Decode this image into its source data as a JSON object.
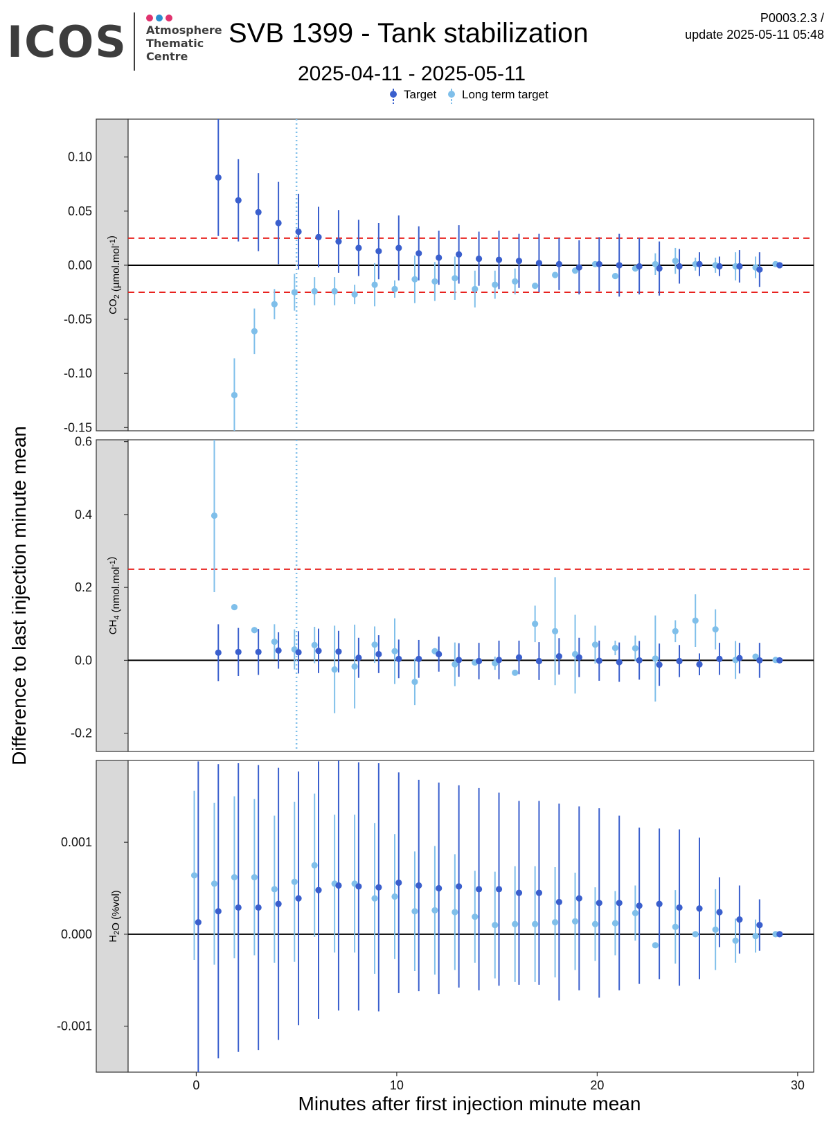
{
  "header": {
    "logo_text": "ICOS",
    "logo_sub": [
      "Atmosphere",
      "Thematic",
      "Centre"
    ],
    "logo_dot_colors": [
      "#e0336e",
      "#2b8fcf",
      "#e0336e"
    ],
    "title": "SVB 1399 - Tank stabilization",
    "date_range": "2025-04-11 - 2025-05-11",
    "meta_line1": "P0003.2.3 /",
    "meta_line2": "update  2025-05-11 05:48"
  },
  "chart_data": {
    "type": "scatter",
    "ylabel": "Difference to last injection minute mean",
    "xlabel": "Minutes after first injection minute mean",
    "xlim": [
      -3.4,
      30.8
    ],
    "xticks": [
      0,
      10,
      20,
      30
    ],
    "vline_x": 5,
    "legend": {
      "placement": "top",
      "entries": [
        {
          "name": "Target",
          "color": "#3a5fcd"
        },
        {
          "name": "Long term target",
          "color": "#7fbfea"
        }
      ]
    },
    "colors": {
      "target": "#3a5fcd",
      "long_term": "#7fbfea",
      "threshold": "#e8221e",
      "vline": "#7fbfea",
      "strip": "#d9d9d9"
    },
    "panels": [
      {
        "id": "co2",
        "strip_label": "CO",
        "strip_sub": "2",
        "strip_unit_pre": " (µmol.mol",
        "strip_sup": "-1",
        "strip_unit_post": ")",
        "ylim": [
          -0.153,
          0.135
        ],
        "yticks": [
          0.1,
          0.05,
          0.0,
          -0.05,
          -0.1,
          -0.15
        ],
        "ytick_labels": [
          "0.10",
          "0.05",
          "0.00",
          "-0.05",
          "-0.10",
          "-0.15"
        ],
        "thresholds": [
          0.025,
          -0.025
        ],
        "series": [
          {
            "name": "Long term target",
            "key": "long_term",
            "x": [
              1.9,
              2.9,
              3.9,
              4.9,
              5.9,
              6.9,
              7.9,
              8.9,
              9.9,
              10.9,
              11.9,
              12.9,
              13.9,
              14.9,
              15.9,
              16.9,
              17.9,
              18.9,
              19.9,
              20.9,
              21.9,
              22.9,
              23.9,
              24.9,
              25.9,
              26.9,
              27.9,
              28.9
            ],
            "y": [
              -0.12,
              -0.061,
              -0.036,
              -0.025,
              -0.024,
              -0.024,
              -0.027,
              -0.018,
              -0.022,
              -0.013,
              -0.015,
              -0.012,
              -0.022,
              -0.018,
              -0.015,
              -0.019,
              -0.009,
              -0.005,
              0.001,
              -0.01,
              -0.003,
              0.001,
              0.004,
              0.001,
              0.0,
              -0.001,
              -0.002,
              0.001
            ],
            "err": [
              0.034,
              0.021,
              0.014,
              0.017,
              0.013,
              0.013,
              0.009,
              0.02,
              0.008,
              0.022,
              0.018,
              0.02,
              0.017,
              0.013,
              0.012,
              0.0,
              0.0,
              0.0,
              0.0,
              0.0,
              0.0,
              0.01,
              0.012,
              0.006,
              0.007,
              0.013,
              0.01,
              0.0
            ]
          },
          {
            "name": "Target",
            "key": "target",
            "x": [
              1.1,
              2.1,
              3.1,
              4.1,
              5.1,
              6.1,
              7.1,
              8.1,
              9.1,
              10.1,
              11.1,
              12.1,
              13.1,
              14.1,
              15.1,
              16.1,
              17.1,
              18.1,
              19.1,
              20.1,
              21.1,
              22.1,
              23.1,
              24.1,
              25.1,
              26.1,
              27.1,
              28.1,
              29.1
            ],
            "y": [
              0.081,
              0.06,
              0.049,
              0.039,
              0.031,
              0.026,
              0.022,
              0.016,
              0.013,
              0.016,
              0.011,
              0.007,
              0.01,
              0.006,
              0.005,
              0.004,
              0.002,
              0.001,
              -0.002,
              0.001,
              0.0,
              -0.001,
              -0.003,
              -0.001,
              0.001,
              -0.001,
              -0.001,
              -0.004,
              0.0
            ],
            "err": [
              0.054,
              0.038,
              0.036,
              0.038,
              0.035,
              0.028,
              0.029,
              0.026,
              0.026,
              0.03,
              0.025,
              0.025,
              0.027,
              0.025,
              0.027,
              0.025,
              0.027,
              0.024,
              0.025,
              0.025,
              0.029,
              0.026,
              0.025,
              0.016,
              0.011,
              0.009,
              0.015,
              0.016,
              0.0
            ]
          }
        ]
      },
      {
        "id": "ch4",
        "strip_label": "CH",
        "strip_sub": "4",
        "strip_unit_pre": " (nmol.mol",
        "strip_sup": "-1",
        "strip_unit_post": ")",
        "ylim": [
          -0.25,
          0.605
        ],
        "yticks": [
          0.6,
          0.4,
          0.2,
          0.0,
          -0.2
        ],
        "ytick_labels": [
          "0.6",
          "0.4",
          "0.2",
          "0.0",
          "-0.2"
        ],
        "thresholds": [
          0.25
        ],
        "series": [
          {
            "name": "Long term target",
            "key": "long_term",
            "x": [
              0.9,
              1.9,
              2.9,
              3.9,
              4.9,
              5.9,
              6.9,
              7.9,
              8.9,
              9.9,
              10.9,
              11.9,
              12.9,
              13.9,
              14.9,
              15.9,
              16.9,
              17.9,
              18.9,
              19.9,
              20.9,
              21.9,
              22.9,
              23.9,
              24.9,
              25.9,
              26.9,
              27.9,
              28.9
            ],
            "y": [
              0.397,
              0.146,
              0.083,
              0.051,
              0.03,
              0.042,
              -0.025,
              -0.017,
              0.043,
              0.025,
              -0.059,
              0.025,
              -0.011,
              -0.006,
              -0.008,
              -0.034,
              0.1,
              0.08,
              0.017,
              0.043,
              0.034,
              0.033,
              0.005,
              0.08,
              0.109,
              0.085,
              0.001,
              0.01,
              0.001
            ],
            "err": [
              0.21,
              0.0,
              0.0,
              0.048,
              0.055,
              0.05,
              0.12,
              0.115,
              0.05,
              0.09,
              0.064,
              0.0,
              0.06,
              0.0,
              0.018,
              0.0,
              0.05,
              0.148,
              0.108,
              0.052,
              0.02,
              0.035,
              0.118,
              0.03,
              0.072,
              0.055,
              0.052,
              0.0,
              0.0
            ]
          },
          {
            "name": "Target",
            "key": "target",
            "x": [
              1.1,
              2.1,
              3.1,
              4.1,
              5.1,
              6.1,
              7.1,
              8.1,
              9.1,
              10.1,
              11.1,
              12.1,
              13.1,
              14.1,
              15.1,
              16.1,
              17.1,
              18.1,
              19.1,
              20.1,
              21.1,
              22.1,
              23.1,
              24.1,
              25.1,
              26.1,
              27.1,
              28.1,
              29.1
            ],
            "y": [
              0.021,
              0.023,
              0.023,
              0.027,
              0.022,
              0.026,
              0.024,
              0.007,
              0.017,
              0.004,
              0.004,
              0.017,
              0.001,
              -0.002,
              0.001,
              0.008,
              -0.002,
              0.011,
              0.008,
              -0.001,
              -0.005,
              0.0,
              -0.012,
              -0.002,
              -0.011,
              0.004,
              0.006,
              0.0,
              0.0
            ],
            "err": [
              0.078,
              0.066,
              0.063,
              0.05,
              0.058,
              0.061,
              0.057,
              0.055,
              0.052,
              0.053,
              0.052,
              0.048,
              0.046,
              0.05,
              0.053,
              0.046,
              0.052,
              0.05,
              0.054,
              0.055,
              0.054,
              0.053,
              0.058,
              0.044,
              0.03,
              0.044,
              0.042,
              0.048,
              0.0
            ]
          }
        ]
      },
      {
        "id": "h2o",
        "strip_label": "H",
        "strip_sub": "2",
        "strip_unit_pre": "O (%vol)",
        "strip_sup": "",
        "strip_unit_post": "",
        "ylim": [
          -0.0015,
          0.00189
        ],
        "yticks": [
          0.001,
          0.0,
          -0.001
        ],
        "ytick_labels": [
          "0.001",
          "0.000",
          "-0.001"
        ],
        "thresholds": [],
        "series": [
          {
            "name": "Long term target",
            "key": "long_term",
            "x": [
              -0.1,
              0.9,
              1.9,
              2.9,
              3.9,
              4.9,
              5.9,
              6.9,
              7.9,
              8.9,
              9.9,
              10.9,
              11.9,
              12.9,
              13.9,
              14.9,
              15.9,
              16.9,
              17.9,
              18.9,
              19.9,
              20.9,
              21.9,
              22.9,
              23.9,
              24.9,
              25.9,
              26.9,
              27.9,
              28.9
            ],
            "y": [
              0.00064,
              0.00055,
              0.00062,
              0.00062,
              0.00049,
              0.00057,
              0.00075,
              0.00055,
              0.00055,
              0.00039,
              0.00041,
              0.00025,
              0.00026,
              0.00024,
              0.00019,
              0.0001,
              0.00011,
              0.00011,
              0.00013,
              0.00014,
              0.00011,
              0.00012,
              0.00023,
              -0.00012,
              8e-05,
              0.0,
              5e-05,
              -7e-05,
              -2e-05,
              0.0
            ],
            "err": [
              0.00092,
              0.00088,
              0.00088,
              0.00085,
              0.0008,
              0.00087,
              0.00078,
              0.00075,
              0.00075,
              0.00082,
              0.00068,
              0.00065,
              0.0007,
              0.00063,
              0.0005,
              0.00058,
              0.00063,
              0.00063,
              0.0006,
              0.00053,
              0.0004,
              0.00035,
              0.0003,
              0.0,
              0.0004,
              0.0,
              0.00044,
              0.00024,
              0.00018,
              0.0
            ]
          },
          {
            "name": "Target",
            "key": "target",
            "x": [
              0.1,
              1.1,
              2.1,
              3.1,
              4.1,
              5.1,
              6.1,
              7.1,
              8.1,
              9.1,
              10.1,
              11.1,
              12.1,
              13.1,
              14.1,
              15.1,
              16.1,
              17.1,
              18.1,
              19.1,
              20.1,
              21.1,
              22.1,
              23.1,
              24.1,
              25.1,
              26.1,
              27.1,
              28.1,
              29.1
            ],
            "y": [
              0.00013,
              0.00025,
              0.00029,
              0.00029,
              0.00033,
              0.00039,
              0.00048,
              0.00053,
              0.00052,
              0.00051,
              0.00056,
              0.00053,
              0.0005,
              0.00052,
              0.00049,
              0.00049,
              0.00045,
              0.00045,
              0.00035,
              0.00039,
              0.00034,
              0.00034,
              0.00031,
              0.00033,
              0.00029,
              0.00028,
              0.00024,
              0.00016,
              0.0001,
              0.0
            ],
            "err": [
              0.00175,
              0.0016,
              0.00157,
              0.00155,
              0.00148,
              0.00138,
              0.0014,
              0.00136,
              0.00135,
              0.00135,
              0.0012,
              0.00115,
              0.00115,
              0.0011,
              0.0011,
              0.00105,
              0.001,
              0.001,
              0.00107,
              0.001,
              0.00103,
              0.00095,
              0.00085,
              0.00082,
              0.00085,
              0.00077,
              0.00038,
              0.00037,
              0.00028,
              0.0
            ]
          }
        ]
      }
    ]
  }
}
